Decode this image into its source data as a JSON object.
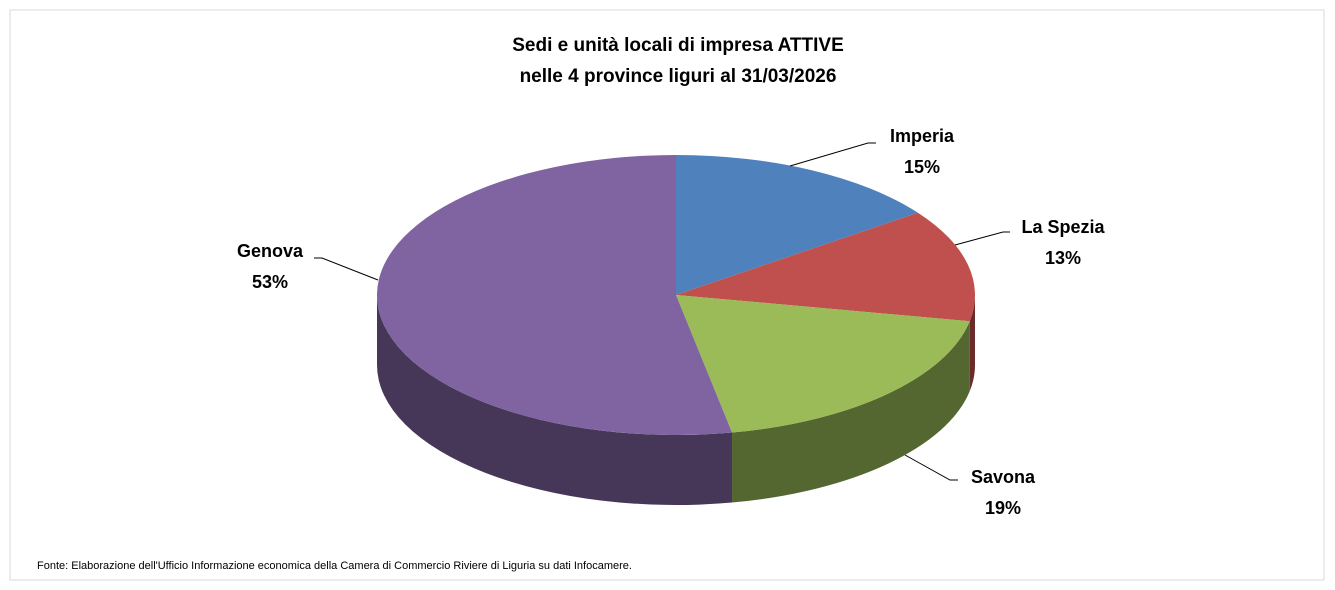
{
  "chart_data": {
    "type": "pie",
    "title": [
      "Sedi e unità locali di impresa ATTIVE",
      "nelle 4 province liguri al 31/03/2026"
    ],
    "categories": [
      "Imperia",
      "La Spezia",
      "Savona",
      "Genova"
    ],
    "values": [
      15,
      13,
      19,
      53
    ],
    "value_labels": [
      "15%",
      "13%",
      "19%",
      "53%"
    ],
    "colors": [
      "#4f81bd",
      "#c0504d",
      "#9bbb59",
      "#8064a2"
    ],
    "source": "Fonte: Elaborazione dell'Ufficio Informazione economica della Camera di Commercio Riviere di Liguria su dati Infocamere."
  }
}
